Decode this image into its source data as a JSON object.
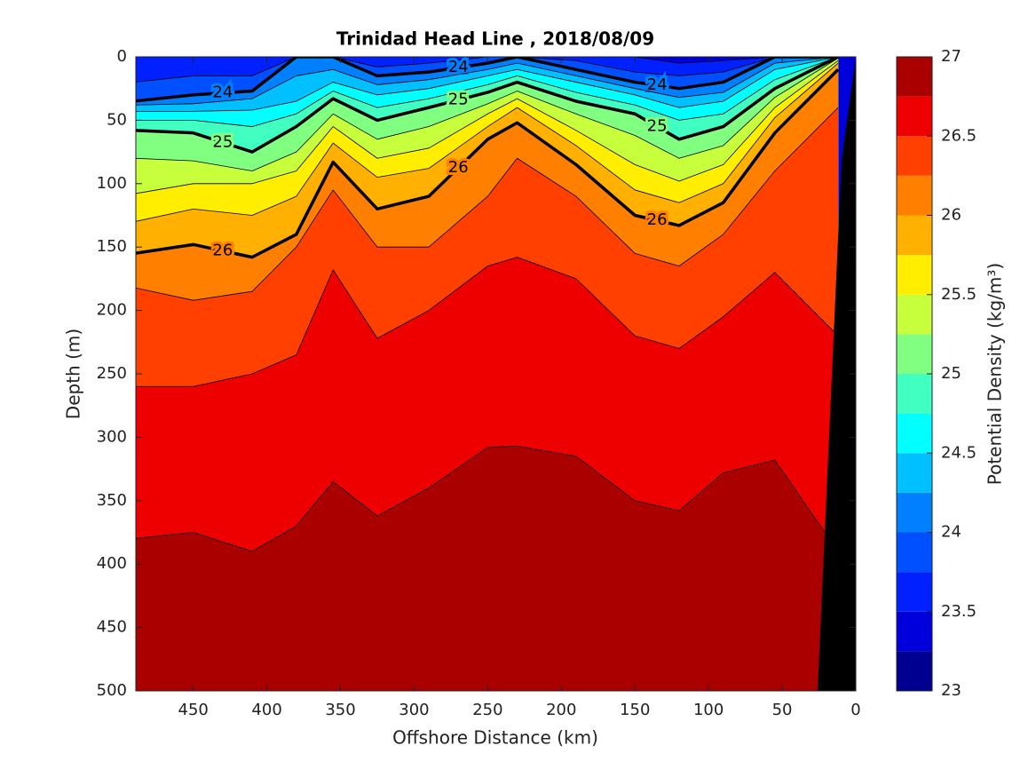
{
  "chart_data": {
    "type": "contour",
    "title": "Trinidad Head Line , 2018/08/09",
    "xlabel": "Offshore Distance (km)",
    "ylabel": "Depth (m)",
    "colorbar_label": "Potential Density (kg/m³)",
    "xlim": [
      489,
      0
    ],
    "xticks": [
      450,
      400,
      350,
      300,
      250,
      200,
      150,
      100,
      50,
      0
    ],
    "ylim": [
      0,
      500
    ],
    "yticks": [
      0,
      50,
      100,
      150,
      200,
      250,
      300,
      350,
      400,
      450,
      500
    ],
    "y_reversed": true,
    "levels": [
      23,
      23.25,
      23.5,
      23.75,
      24,
      24.25,
      24.5,
      24.75,
      25,
      25.25,
      25.5,
      25.75,
      26,
      26.25,
      26.5,
      26.75,
      27
    ],
    "colors": [
      "#000090",
      "#0000dd",
      "#0020ff",
      "#0050ff",
      "#0080ff",
      "#00c0ff",
      "#00ffff",
      "#40ffc0",
      "#80ff80",
      "#c8ff3c",
      "#ffee00",
      "#ffb000",
      "#ff8000",
      "#ff4000",
      "#ee0000",
      "#aa0000"
    ],
    "cticks": [
      23,
      23.5,
      24,
      24.5,
      25,
      25.5,
      26,
      26.5,
      27
    ],
    "x": [
      490,
      450,
      410,
      380,
      355,
      325,
      290,
      250,
      230,
      190,
      150,
      120,
      90,
      55,
      12
    ],
    "contours": [
      {
        "level": 23.5,
        "depths": [
          0,
          0,
          0,
          0,
          0,
          0,
          0,
          0,
          0,
          0,
          0,
          5,
          3,
          0,
          0
        ]
      },
      {
        "level": 23.75,
        "depths": [
          20,
          15,
          15,
          0,
          0,
          8,
          5,
          0,
          0,
          3,
          12,
          15,
          12,
          0,
          0
        ]
      },
      {
        "level": 24,
        "thick": true,
        "depths": [
          35,
          30,
          27,
          0,
          0,
          15,
          12,
          5,
          0,
          10,
          20,
          25,
          20,
          0,
          0
        ]
      },
      {
        "level": 24.25,
        "depths": [
          38,
          37,
          33,
          15,
          10,
          22,
          18,
          10,
          5,
          15,
          25,
          32,
          28,
          5,
          0
        ]
      },
      {
        "level": 24.5,
        "depths": [
          43,
          43,
          42,
          35,
          20,
          30,
          25,
          15,
          10,
          20,
          30,
          40,
          35,
          10,
          0
        ]
      },
      {
        "level": 24.75,
        "depths": [
          50,
          50,
          55,
          45,
          27,
          40,
          33,
          22,
          15,
          28,
          38,
          50,
          45,
          18,
          0
        ]
      },
      {
        "level": 25,
        "thick": true,
        "depths": [
          58,
          60,
          75,
          55,
          33,
          50,
          40,
          28,
          20,
          35,
          45,
          65,
          55,
          25,
          0
        ]
      },
      {
        "level": 25.25,
        "depths": [
          80,
          82,
          90,
          75,
          45,
          65,
          55,
          37,
          27,
          45,
          62,
          80,
          70,
          32,
          1
        ]
      },
      {
        "level": 25.5,
        "depths": [
          108,
          100,
          100,
          90,
          55,
          80,
          72,
          45,
          33,
          58,
          85,
          98,
          85,
          40,
          3
        ]
      },
      {
        "level": 25.75,
        "depths": [
          130,
          120,
          125,
          110,
          68,
          95,
          88,
          55,
          40,
          70,
          105,
          115,
          100,
          48,
          5
        ]
      },
      {
        "level": 26,
        "thick": true,
        "depths": [
          155,
          148,
          158,
          140,
          83,
          120,
          110,
          65,
          52,
          85,
          125,
          133,
          115,
          60,
          10
        ]
      },
      {
        "level": 26.25,
        "depths": [
          182,
          192,
          185,
          150,
          105,
          150,
          150,
          110,
          80,
          110,
          155,
          165,
          140,
          90,
          40
        ]
      },
      {
        "level": 26.5,
        "depths": [
          260,
          260,
          250,
          235,
          168,
          222,
          200,
          165,
          158,
          175,
          220,
          230,
          205,
          170,
          220
        ]
      },
      {
        "level": 26.75,
        "depths": [
          380,
          375,
          390,
          370,
          335,
          362,
          340,
          308,
          307,
          315,
          350,
          358,
          328,
          318,
          390
        ]
      }
    ]
  }
}
